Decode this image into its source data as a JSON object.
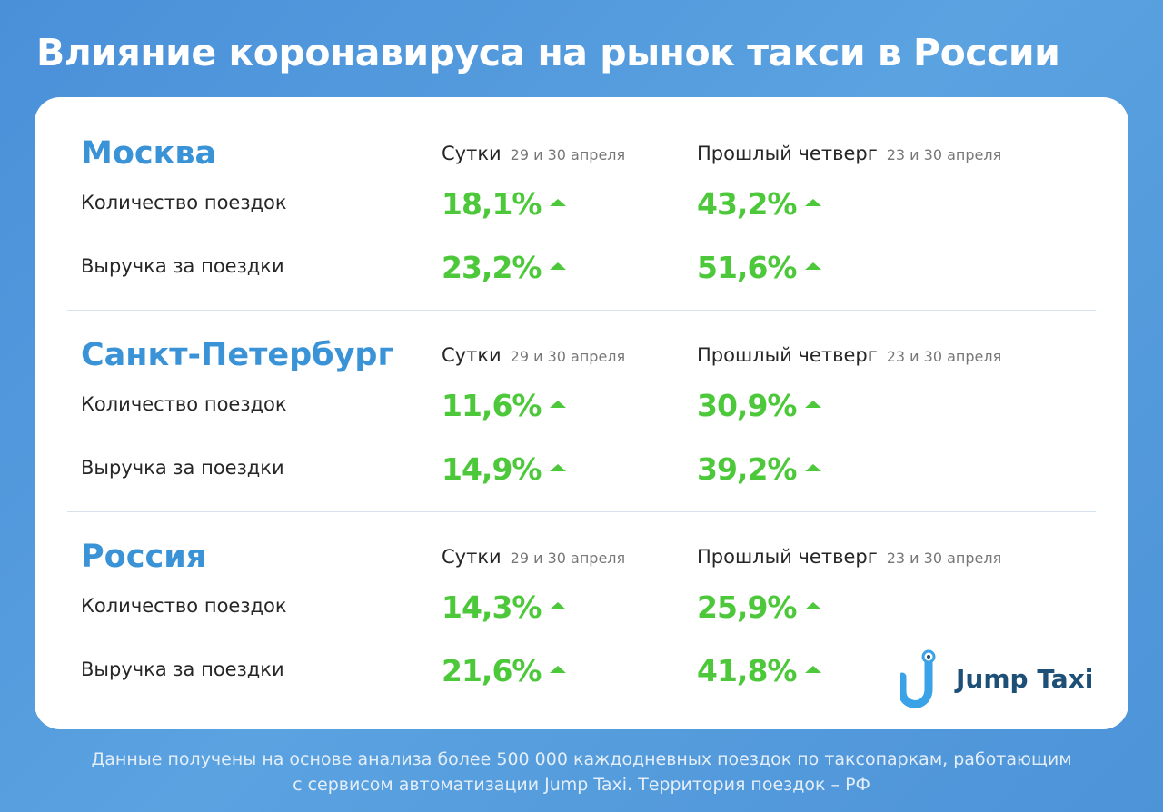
{
  "title": "Влияние коронавируса на рынок такси в России",
  "periods": {
    "a": {
      "name": "Сутки",
      "date": "29 и 30 апреля"
    },
    "b": {
      "name": "Прошлый четверг",
      "date": "23 и 30 апреля"
    }
  },
  "row_labels": [
    "Количество поездок",
    "Выручка за поездки"
  ],
  "sections": [
    {
      "city": "Москва",
      "rows": [
        {
          "a": "18,1%",
          "b": "43,2%"
        },
        {
          "a": "23,2%",
          "b": "51,6%"
        }
      ]
    },
    {
      "city": "Санкт-Петербург",
      "rows": [
        {
          "a": "11,6%",
          "b": "30,9%"
        },
        {
          "a": "14,9%",
          "b": "39,2%"
        }
      ]
    },
    {
      "city": "Россия",
      "rows": [
        {
          "a": "14,3%",
          "b": "25,9%"
        },
        {
          "a": "21,6%",
          "b": "41,8%"
        }
      ]
    }
  ],
  "logo": {
    "text": "Jump Taxi"
  },
  "footnote": {
    "line1": "Данные получены на основе анализа более 500 000 каждодневных поездок по таксопаркам, работающим",
    "line2": "с сервисом автоматизации Jump Taxi. Территория поездок – РФ"
  },
  "colors": {
    "background": "#4a90d9",
    "city": "#3a93d6",
    "value_up": "#4cc83a",
    "logo_text": "#1d4f77"
  },
  "icons": {
    "trend": "arrow-up-icon"
  }
}
